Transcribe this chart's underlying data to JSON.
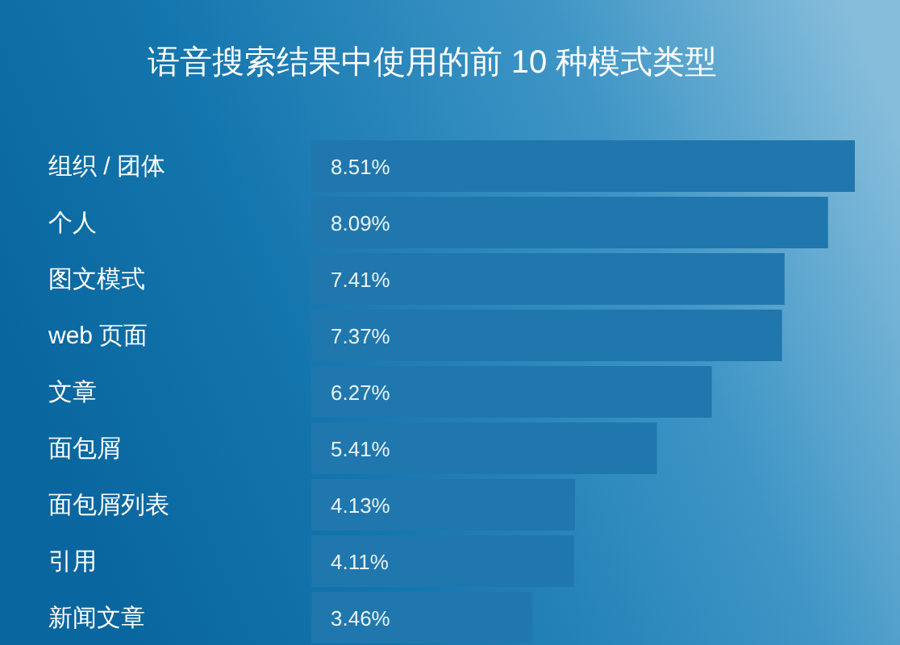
{
  "chart_data": {
    "type": "bar",
    "orientation": "horizontal",
    "title": "语音搜索结果中使用的前 10 种模式类型",
    "categories": [
      "组织 / 团体",
      "个人",
      "图文模式",
      "web 页面",
      "文章",
      "面包屑",
      "面包屑列表",
      "引用",
      "新闻文章"
    ],
    "values": [
      8.51,
      8.09,
      7.41,
      7.37,
      6.27,
      5.41,
      4.13,
      4.11,
      3.46
    ],
    "value_labels": [
      "8.51%",
      "8.09%",
      "7.41%",
      "7.37%",
      "6.27%",
      "5.41%",
      "4.13%",
      "4.11%",
      "3.46%"
    ],
    "color": "#1f77ad"
  }
}
